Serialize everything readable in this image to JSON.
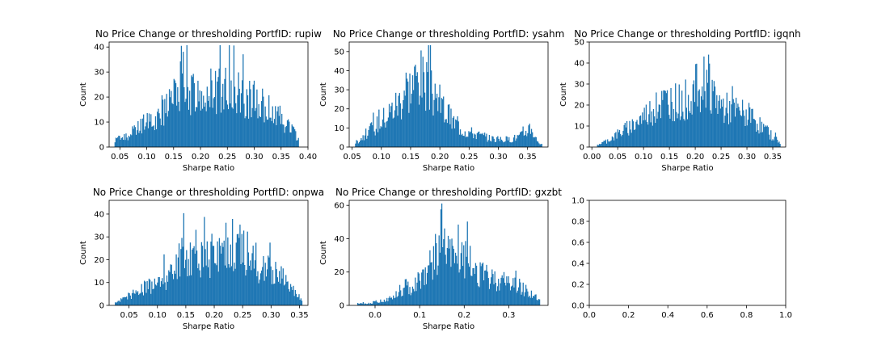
{
  "chart_data": [
    {
      "type": "bar",
      "title": "No Price Change or thresholding PortfID: rupiw",
      "xlabel": "Sharpe Ratio",
      "ylabel": "Count",
      "xlim": [
        0.03,
        0.4
      ],
      "ylim": [
        0,
        42
      ],
      "xticks": [
        0.05,
        0.1,
        0.15,
        0.2,
        0.25,
        0.3,
        0.35,
        0.4
      ],
      "xticklabels": [
        "0.05",
        "0.10",
        "0.15",
        "0.20",
        "0.25",
        "0.30",
        "0.35",
        "0.40"
      ],
      "yticks": [
        0,
        10,
        20,
        30,
        40
      ],
      "yticklabels": [
        "0",
        "10",
        "20",
        "30",
        "40"
      ],
      "bin_range": [
        0.04,
        0.383
      ],
      "x": [
        0.04,
        0.06,
        0.08,
        0.1,
        0.12,
        0.14,
        0.155,
        0.165,
        0.175,
        0.19,
        0.21,
        0.23,
        0.25,
        0.27,
        0.29,
        0.31,
        0.33,
        0.35,
        0.37,
        0.383
      ],
      "values": [
        3,
        4,
        7,
        10,
        13,
        17,
        20,
        29,
        25,
        20,
        20,
        22,
        25,
        21,
        20,
        17,
        14,
        11,
        7,
        3
      ],
      "color": "#1f77b4"
    },
    {
      "type": "bar",
      "title": "No Price Change or thresholding PortfID: ysahm",
      "xlabel": "Sharpe Ratio",
      "ylabel": "Count",
      "xlim": [
        0.045,
        0.385
      ],
      "ylim": [
        0,
        55
      ],
      "xticks": [
        0.05,
        0.1,
        0.15,
        0.2,
        0.25,
        0.3,
        0.35
      ],
      "xticklabels": [
        "0.05",
        "0.10",
        "0.15",
        "0.20",
        "0.25",
        "0.30",
        "0.35"
      ],
      "yticks": [
        0,
        10,
        20,
        30,
        40,
        50
      ],
      "yticklabels": [
        "0",
        "10",
        "20",
        "30",
        "40",
        "50"
      ],
      "bin_range": [
        0.055,
        0.375
      ],
      "x": [
        0.055,
        0.07,
        0.09,
        0.11,
        0.13,
        0.15,
        0.165,
        0.18,
        0.2,
        0.22,
        0.24,
        0.26,
        0.28,
        0.3,
        0.32,
        0.34,
        0.355,
        0.365,
        0.375
      ],
      "values": [
        2,
        6,
        11,
        17,
        24,
        32,
        38,
        30,
        23,
        14,
        9,
        7,
        5,
        4,
        4,
        6,
        11,
        4,
        1
      ],
      "color": "#1f77b4"
    },
    {
      "type": "bar",
      "title": "No Price Change or thresholding PortfID: igqnh",
      "xlabel": "Sharpe Ratio",
      "ylabel": "Count",
      "xlim": [
        -0.005,
        0.375
      ],
      "ylim": [
        0,
        50
      ],
      "xticks": [
        0.0,
        0.05,
        0.1,
        0.15,
        0.2,
        0.25,
        0.3,
        0.35
      ],
      "xticklabels": [
        "0.00",
        "0.05",
        "0.10",
        "0.15",
        "0.20",
        "0.25",
        "0.30",
        "0.35"
      ],
      "yticks": [
        0,
        10,
        20,
        30,
        40,
        50
      ],
      "yticklabels": [
        "0",
        "10",
        "20",
        "30",
        "40",
        "50"
      ],
      "bin_range": [
        0.01,
        0.365
      ],
      "x": [
        0.01,
        0.03,
        0.05,
        0.07,
        0.09,
        0.11,
        0.13,
        0.15,
        0.17,
        0.19,
        0.21,
        0.225,
        0.235,
        0.25,
        0.27,
        0.29,
        0.31,
        0.33,
        0.35,
        0.365
      ],
      "values": [
        1,
        3,
        6,
        9,
        12,
        16,
        20,
        22,
        21,
        24,
        30,
        34,
        25,
        19,
        17,
        16,
        14,
        9,
        5,
        2
      ],
      "color": "#1f77b4"
    },
    {
      "type": "bar",
      "title": "No Price Change or thresholding PortfID: onpwa",
      "xlabel": "Sharpe Ratio",
      "ylabel": "Count",
      "xlim": [
        0.015,
        0.365
      ],
      "ylim": [
        0,
        46
      ],
      "xticks": [
        0.05,
        0.1,
        0.15,
        0.2,
        0.25,
        0.3,
        0.35
      ],
      "xticklabels": [
        "0.05",
        "0.10",
        "0.15",
        "0.20",
        "0.25",
        "0.30",
        "0.35"
      ],
      "yticks": [
        0,
        10,
        20,
        30,
        40
      ],
      "yticklabels": [
        "0",
        "10",
        "20",
        "30",
        "40"
      ],
      "bin_range": [
        0.025,
        0.355
      ],
      "x": [
        0.025,
        0.04,
        0.06,
        0.08,
        0.1,
        0.12,
        0.14,
        0.16,
        0.18,
        0.2,
        0.22,
        0.24,
        0.26,
        0.28,
        0.3,
        0.32,
        0.34,
        0.355
      ],
      "values": [
        1,
        3,
        6,
        8,
        10,
        13,
        20,
        24,
        21,
        22,
        25,
        28,
        22,
        17,
        15,
        12,
        6,
        2
      ],
      "color": "#1f77b4"
    },
    {
      "type": "bar",
      "title": "No Price Change or thresholding PortfID: gxzbt",
      "xlabel": "Sharpe Ratio",
      "ylabel": "Count",
      "xlim": [
        -0.058,
        0.388
      ],
      "ylim": [
        0,
        63
      ],
      "xticks": [
        0.0,
        0.1,
        0.2,
        0.3
      ],
      "xticklabels": [
        "0.0",
        "0.1",
        "0.2",
        "0.3"
      ],
      "yticks": [
        0,
        20,
        40,
        60
      ],
      "yticklabels": [
        "0",
        "20",
        "40",
        "60"
      ],
      "bin_range": [
        -0.04,
        0.37
      ],
      "x": [
        -0.04,
        -0.02,
        0.0,
        0.02,
        0.04,
        0.06,
        0.08,
        0.1,
        0.12,
        0.14,
        0.15,
        0.16,
        0.18,
        0.2,
        0.22,
        0.24,
        0.26,
        0.28,
        0.3,
        0.32,
        0.34,
        0.36,
        0.37
      ],
      "values": [
        1,
        1,
        2,
        3,
        5,
        8,
        11,
        16,
        22,
        32,
        46,
        30,
        29,
        28,
        23,
        18,
        16,
        15,
        14,
        12,
        9,
        5,
        2
      ],
      "color": "#1f77b4"
    },
    {
      "type": "bar",
      "title": "",
      "xlabel": "",
      "ylabel": "",
      "xlim": [
        0,
        1
      ],
      "ylim": [
        0,
        1
      ],
      "xticks": [
        0,
        0.2,
        0.4,
        0.6,
        0.8,
        1.0
      ],
      "xticklabels": [
        "0.0",
        "0.2",
        "0.4",
        "0.6",
        "0.8",
        "1.0"
      ],
      "yticks": [
        0,
        0.2,
        0.4,
        0.6,
        0.8,
        1.0
      ],
      "yticklabels": [
        "0.0",
        "0.2",
        "0.4",
        "0.6",
        "0.8",
        "1.0"
      ],
      "x": [],
      "values": [],
      "color": "#1f77b4"
    }
  ]
}
